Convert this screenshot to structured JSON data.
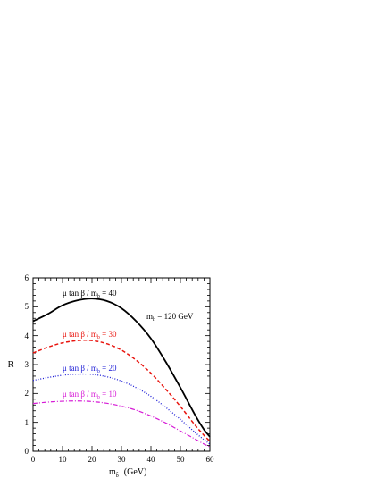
{
  "chart_data": {
    "type": "line",
    "xlabel": {
      "main": "m",
      "sub": "b̃",
      "unit": "(GeV)"
    },
    "ylabel": "R",
    "xlim": [
      0,
      60
    ],
    "ylim": [
      0,
      6
    ],
    "xticks": [
      "0",
      "10",
      "20",
      "30",
      "40",
      "50",
      "60"
    ],
    "yticks": [
      "0",
      "1",
      "2",
      "3",
      "4",
      "5",
      "6"
    ],
    "annotation": {
      "main": "m",
      "sub": "h",
      "rest": " = 120 GeV"
    },
    "series": [
      {
        "label": {
          "main": "μ tan β / m",
          "sub": "b",
          "rest": " = 40"
        },
        "color": "#000000",
        "dash": "solid",
        "x": [
          0,
          5,
          10,
          15,
          20,
          25,
          30,
          35,
          40,
          45,
          50,
          55,
          58,
          60
        ],
        "y": [
          4.5,
          4.75,
          5.05,
          5.22,
          5.28,
          5.2,
          4.95,
          4.5,
          3.9,
          3.1,
          2.2,
          1.25,
          0.75,
          0.5
        ]
      },
      {
        "label": {
          "main": "μ tan β / m",
          "sub": "b",
          "rest": " = 30"
        },
        "color": "#e8140e",
        "dash": "dashed",
        "x": [
          0,
          5,
          10,
          15,
          20,
          25,
          30,
          35,
          40,
          45,
          50,
          55,
          58,
          60
        ],
        "y": [
          3.4,
          3.6,
          3.75,
          3.83,
          3.83,
          3.72,
          3.5,
          3.15,
          2.7,
          2.15,
          1.55,
          0.9,
          0.55,
          0.35
        ]
      },
      {
        "label": {
          "main": "μ tan β / m",
          "sub": "b",
          "rest": " = 20"
        },
        "color": "#1a1ad6",
        "dash": "dotted",
        "x": [
          0,
          5,
          10,
          15,
          20,
          25,
          30,
          35,
          40,
          45,
          50,
          55,
          58,
          60
        ],
        "y": [
          2.45,
          2.55,
          2.63,
          2.67,
          2.66,
          2.58,
          2.43,
          2.2,
          1.9,
          1.52,
          1.1,
          0.65,
          0.4,
          0.25
        ]
      },
      {
        "label": {
          "main": "μ tan β / m",
          "sub": "b",
          "rest": " = 10"
        },
        "color": "#d61ad6",
        "dash": "dashdot",
        "x": [
          0,
          5,
          10,
          15,
          20,
          25,
          30,
          35,
          40,
          45,
          50,
          55,
          58,
          60
        ],
        "y": [
          1.65,
          1.7,
          1.73,
          1.74,
          1.72,
          1.66,
          1.56,
          1.42,
          1.22,
          0.98,
          0.7,
          0.42,
          0.25,
          0.15
        ]
      }
    ]
  }
}
